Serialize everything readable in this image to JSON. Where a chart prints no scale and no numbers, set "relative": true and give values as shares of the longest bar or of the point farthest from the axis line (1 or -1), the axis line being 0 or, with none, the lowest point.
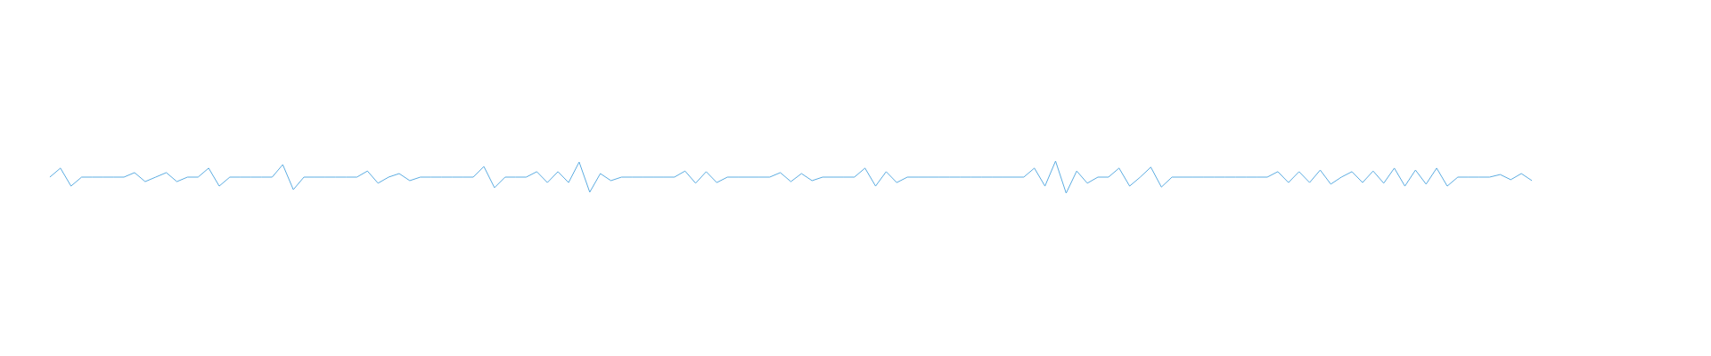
{
  "chart_data": {
    "type": "line",
    "relative": true,
    "marker": "none",
    "line_style": "solid",
    "categories": [
      null,
      null,
      null,
      null,
      null,
      null,
      null,
      null,
      null,
      null,
      null,
      null,
      null,
      null,
      null,
      null,
      null,
      null,
      null,
      null,
      null,
      null,
      null,
      null,
      null,
      null,
      null,
      null,
      null,
      null,
      null,
      null,
      null,
      null,
      null,
      null,
      null,
      null,
      null,
      null,
      null,
      null,
      null,
      null,
      null,
      null,
      null,
      null,
      null,
      null,
      null,
      null,
      null,
      null,
      null,
      null,
      null,
      null,
      null,
      null,
      null,
      null,
      null,
      null,
      null,
      null,
      null,
      null,
      null,
      null,
      null,
      null,
      null,
      null,
      null,
      null,
      null,
      null,
      null,
      null,
      null,
      null,
      null,
      null,
      null,
      null,
      null,
      null,
      null,
      null,
      null,
      null,
      null,
      null,
      null,
      null,
      null,
      null,
      null,
      null,
      null,
      null,
      null,
      null,
      null,
      null,
      null,
      null,
      null,
      null,
      null,
      null,
      null,
      null,
      null,
      null,
      null,
      null,
      null,
      null,
      null,
      null,
      null,
      null,
      null,
      null,
      null,
      null,
      null,
      null,
      null,
      null,
      null,
      null,
      null,
      null,
      null,
      null,
      null,
      null,
      null
    ],
    "series": [
      {
        "color": "#5dade2",
        "values": [
          0.5,
          0.78,
          0.22,
          0.5,
          0.5,
          0.5,
          0.5,
          0.5,
          0.64,
          0.36,
          0.5,
          0.64,
          0.36,
          0.5,
          0.5,
          0.78,
          0.22,
          0.5,
          0.5,
          0.5,
          0.5,
          0.5,
          0.89,
          0.11,
          0.5,
          0.5,
          0.5,
          0.5,
          0.5,
          0.5,
          0.69,
          0.31,
          0.5,
          0.61,
          0.39,
          0.5,
          0.5,
          0.5,
          0.5,
          0.5,
          0.5,
          0.83,
          0.17,
          0.5,
          0.5,
          0.5,
          0.67,
          0.33,
          0.67,
          0.33,
          0.97,
          0.03,
          0.61,
          0.39,
          0.5,
          0.5,
          0.5,
          0.5,
          0.5,
          0.5,
          0.69,
          0.31,
          0.67,
          0.33,
          0.5,
          0.5,
          0.5,
          0.5,
          0.5,
          0.64,
          0.36,
          0.61,
          0.39,
          0.5,
          0.5,
          0.5,
          0.5,
          0.78,
          0.22,
          0.67,
          0.33,
          0.5,
          0.5,
          0.5,
          0.5,
          0.5,
          0.5,
          0.5,
          0.5,
          0.5,
          0.5,
          0.5,
          0.5,
          0.78,
          0.22,
          1,
          0,
          0.69,
          0.31,
          0.5,
          0.5,
          0.78,
          0.22,
          0.5,
          0.81,
          0.19,
          0.5,
          0.5,
          0.5,
          0.5,
          0.5,
          0.5,
          0.5,
          0.5,
          0.5,
          0.5,
          0.67,
          0.33,
          0.67,
          0.33,
          0.72,
          0.28,
          0.5,
          0.67,
          0.33,
          0.69,
          0.31,
          0.78,
          0.22,
          0.72,
          0.28,
          0.78,
          0.22,
          0.5,
          0.5,
          0.5,
          0.5,
          0.58,
          0.42,
          0.61,
          0.39
        ]
      }
    ]
  }
}
